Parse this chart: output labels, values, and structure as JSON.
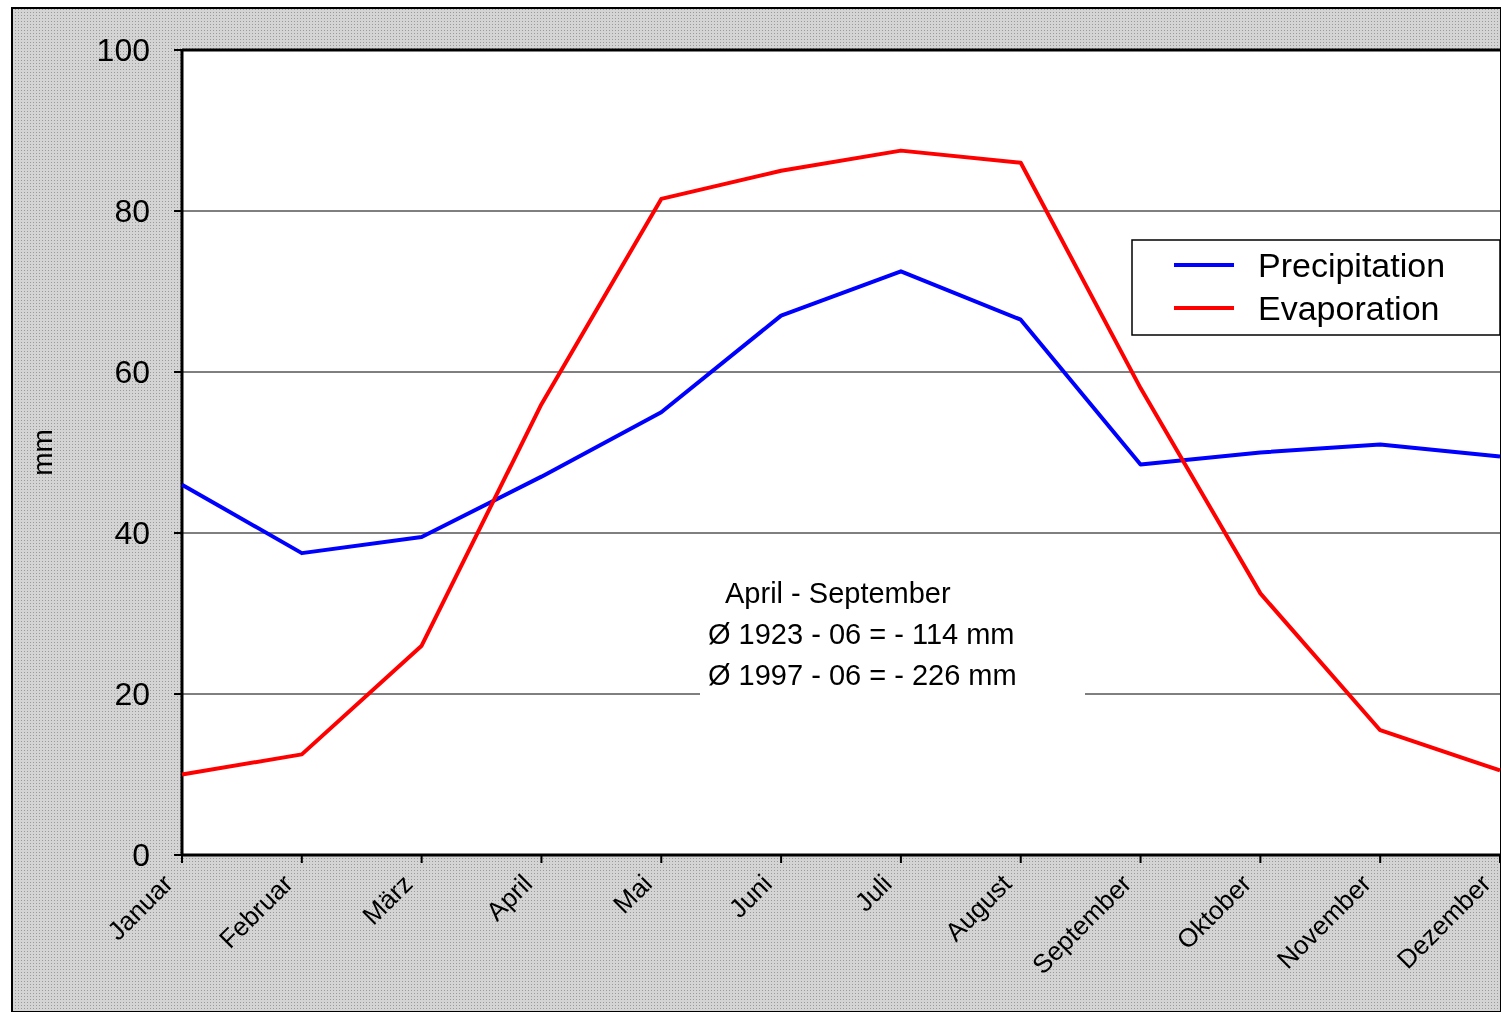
{
  "chart_data": {
    "type": "line",
    "ylabel": "mm",
    "categories": [
      "Januar",
      "Februar",
      "März",
      "April",
      "Mai",
      "Juni",
      "Juli",
      "August",
      "September",
      "Oktober",
      "November",
      "Dezember"
    ],
    "series": [
      {
        "name": "Precipitation",
        "color": "#0000ff",
        "values": [
          46,
          37.5,
          39.5,
          47,
          55,
          67,
          72.5,
          66.5,
          48.5,
          50,
          51,
          49.5
        ]
      },
      {
        "name": "Evaporation",
        "color": "#ff0000",
        "values": [
          10,
          12.5,
          26,
          56,
          81.5,
          85,
          87.5,
          86,
          58,
          32.5,
          15.5,
          10.5
        ]
      }
    ],
    "ylim": [
      0,
      100
    ],
    "yticks": [
      0,
      20,
      40,
      60,
      80,
      100
    ],
    "grid": "y",
    "legend": "top right",
    "marker": "none",
    "line_style": "solid",
    "annotations": [
      "April - September",
      "Ø  1923 - 06 = - 114 mm",
      "Ø  1997 - 06 = - 226 mm"
    ]
  }
}
